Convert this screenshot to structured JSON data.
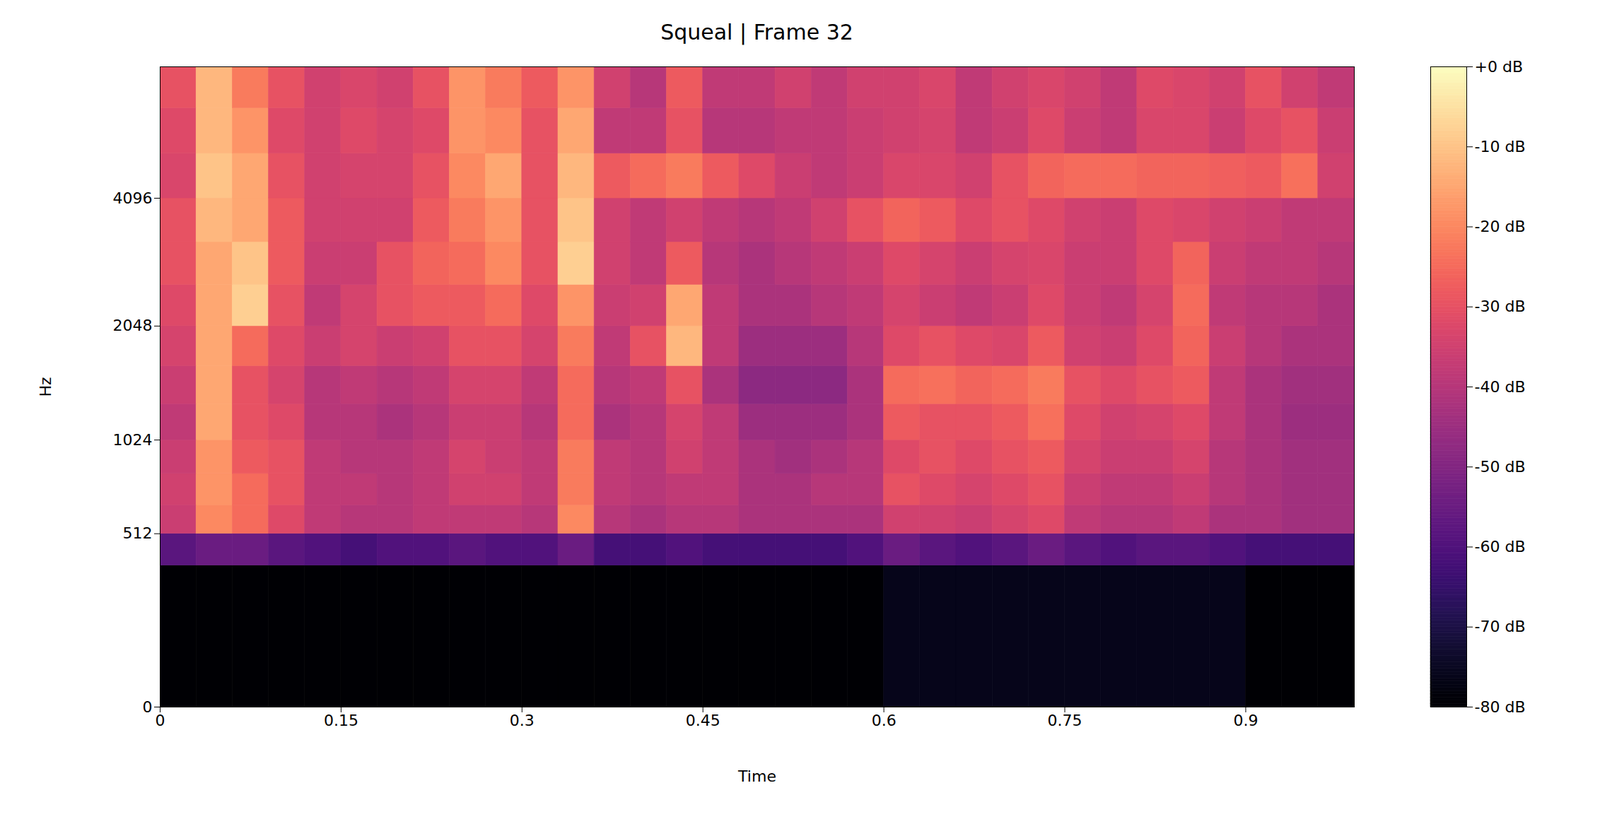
{
  "chart_data": {
    "type": "heatmap",
    "title": "Squeal | Frame 32",
    "x_label": "Time",
    "y_label": "Hz",
    "color": "magma",
    "xlim": [
      0,
      0.99
    ],
    "xticks": [
      0,
      0.15,
      0.3,
      0.45,
      0.6,
      0.75,
      0.9
    ],
    "ylim": [
      0,
      8000
    ],
    "yticks": [
      0,
      512,
      1024,
      2048,
      4096
    ],
    "time_edges": [
      0,
      0.03,
      0.06,
      0.09,
      0.12,
      0.15,
      0.18,
      0.21,
      0.24,
      0.27,
      0.3,
      0.33,
      0.36,
      0.39,
      0.42,
      0.45,
      0.48,
      0.51,
      0.54,
      0.57,
      0.6,
      0.63,
      0.66,
      0.69,
      0.72,
      0.75,
      0.78,
      0.81,
      0.84,
      0.87,
      0.9,
      0.93,
      0.96,
      0.99
    ],
    "freq_edges": [
      0,
      384,
      512,
      645,
      813,
      1024,
      1290,
      1625,
      2048,
      2580,
      3251,
      4096,
      5161,
      6502,
      8000
    ],
    "cells": [
      [
        -80,
        -80,
        -80,
        -80,
        -80,
        -80,
        -80,
        -80,
        -80,
        -80,
        -80,
        -80,
        -80,
        -80,
        -80,
        -80,
        -80,
        -80,
        -80,
        -80,
        -76,
        -76,
        -76,
        -76,
        -76,
        -76,
        -76,
        -76,
        -76,
        -76,
        -80,
        -80,
        -80
      ],
      [
        -58,
        -55,
        -55,
        -58,
        -60,
        -62,
        -60,
        -60,
        -58,
        -60,
        -60,
        -55,
        -62,
        -62,
        -60,
        -62,
        -62,
        -62,
        -62,
        -60,
        -55,
        -58,
        -60,
        -58,
        -55,
        -58,
        -60,
        -58,
        -58,
        -60,
        -62,
        -62,
        -62
      ],
      [
        -36,
        -20,
        -25,
        -32,
        -38,
        -40,
        -40,
        -38,
        -38,
        -38,
        -40,
        -20,
        -40,
        -42,
        -40,
        -40,
        -42,
        -42,
        -42,
        -42,
        -35,
        -35,
        -36,
        -34,
        -32,
        -38,
        -40,
        -40,
        -38,
        -42,
        -42,
        -44,
        -44
      ],
      [
        -35,
        -18,
        -25,
        -30,
        -38,
        -38,
        -40,
        -38,
        -35,
        -35,
        -38,
        -22,
        -38,
        -40,
        -38,
        -38,
        -42,
        -42,
        -40,
        -40,
        -30,
        -32,
        -34,
        -32,
        -30,
        -36,
        -38,
        -38,
        -36,
        -40,
        -42,
        -44,
        -44
      ],
      [
        -36,
        -18,
        -28,
        -30,
        -38,
        -40,
        -40,
        -38,
        -34,
        -36,
        -38,
        -22,
        -38,
        -40,
        -35,
        -38,
        -42,
        -44,
        -42,
        -40,
        -32,
        -30,
        -32,
        -30,
        -28,
        -34,
        -36,
        -36,
        -34,
        -40,
        -42,
        -44,
        -44
      ],
      [
        -38,
        -15,
        -30,
        -32,
        -40,
        -40,
        -42,
        -40,
        -36,
        -36,
        -40,
        -25,
        -42,
        -40,
        -34,
        -38,
        -45,
        -45,
        -45,
        -42,
        -28,
        -30,
        -30,
        -28,
        -24,
        -32,
        -35,
        -34,
        -32,
        -38,
        -42,
        -45,
        -45
      ],
      [
        -36,
        -15,
        -30,
        -34,
        -40,
        -38,
        -40,
        -38,
        -34,
        -34,
        -38,
        -25,
        -40,
        -38,
        -30,
        -42,
        -48,
        -48,
        -48,
        -42,
        -25,
        -24,
        -26,
        -25,
        -22,
        -30,
        -32,
        -30,
        -28,
        -38,
        -42,
        -44,
        -44
      ],
      [
        -34,
        -15,
        -25,
        -32,
        -36,
        -34,
        -36,
        -35,
        -30,
        -30,
        -34,
        -22,
        -38,
        -30,
        -12,
        -38,
        -45,
        -45,
        -45,
        -40,
        -32,
        -30,
        -32,
        -33,
        -28,
        -35,
        -36,
        -32,
        -26,
        -36,
        -40,
        -42,
        -42
      ],
      [
        -32,
        -15,
        -8,
        -30,
        -38,
        -34,
        -30,
        -28,
        -28,
        -25,
        -32,
        -18,
        -36,
        -35,
        -15,
        -38,
        -42,
        -42,
        -40,
        -38,
        -34,
        -36,
        -38,
        -36,
        -32,
        -36,
        -38,
        -34,
        -25,
        -38,
        -40,
        -40,
        -42
      ],
      [
        -30,
        -15,
        -10,
        -28,
        -36,
        -36,
        -30,
        -26,
        -25,
        -20,
        -30,
        -8,
        -35,
        -38,
        -28,
        -40,
        -42,
        -40,
        -38,
        -36,
        -32,
        -34,
        -36,
        -34,
        -33,
        -36,
        -36,
        -32,
        -26,
        -36,
        -38,
        -38,
        -40
      ],
      [
        -30,
        -12,
        -15,
        -28,
        -35,
        -35,
        -35,
        -28,
        -22,
        -18,
        -30,
        -10,
        -35,
        -38,
        -35,
        -38,
        -40,
        -38,
        -35,
        -30,
        -26,
        -28,
        -32,
        -30,
        -32,
        -35,
        -36,
        -32,
        -33,
        -35,
        -36,
        -38,
        -38
      ],
      [
        -33,
        -10,
        -15,
        -30,
        -35,
        -34,
        -34,
        -30,
        -20,
        -15,
        -30,
        -12,
        -28,
        -25,
        -22,
        -28,
        -32,
        -36,
        -38,
        -36,
        -33,
        -33,
        -35,
        -30,
        -26,
        -25,
        -25,
        -26,
        -26,
        -27,
        -28,
        -24,
        -35
      ],
      [
        -32,
        -12,
        -18,
        -32,
        -35,
        -32,
        -34,
        -32,
        -18,
        -20,
        -30,
        -15,
        -38,
        -38,
        -30,
        -40,
        -40,
        -38,
        -38,
        -36,
        -35,
        -34,
        -38,
        -36,
        -32,
        -36,
        -38,
        -33,
        -33,
        -36,
        -32,
        -30,
        -36
      ],
      [
        -30,
        -12,
        -22,
        -30,
        -35,
        -33,
        -35,
        -30,
        -18,
        -22,
        -28,
        -18,
        -35,
        -40,
        -28,
        -38,
        -38,
        -35,
        -38,
        -35,
        -35,
        -33,
        -38,
        -35,
        -33,
        -35,
        -38,
        -32,
        -33,
        -35,
        -30,
        -35,
        -38
      ]
    ],
    "colorbar": {
      "range": [
        -80,
        0
      ],
      "ticks": [
        {
          "value": 0,
          "label": "+0 dB"
        },
        {
          "value": -10,
          "label": "-10 dB"
        },
        {
          "value": -20,
          "label": "-20 dB"
        },
        {
          "value": -30,
          "label": "-30 dB"
        },
        {
          "value": -40,
          "label": "-40 dB"
        },
        {
          "value": -50,
          "label": "-50 dB"
        },
        {
          "value": -60,
          "label": "-60 dB"
        },
        {
          "value": -70,
          "label": "-70 dB"
        },
        {
          "value": -80,
          "label": "-80 dB"
        }
      ]
    }
  }
}
